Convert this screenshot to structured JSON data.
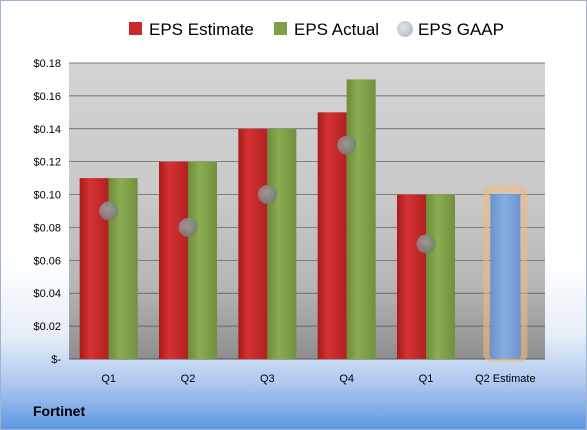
{
  "company": "Fortinet",
  "colors": {
    "estimate": "#c82b2b",
    "actual": "#7fa046",
    "gaap": "#8a8a8a",
    "q2_estimate": "#7aa0d6",
    "q2_glow": "#f5b97a"
  },
  "chart_data": {
    "type": "bar",
    "categories": [
      "Q1",
      "Q2",
      "Q3",
      "Q4",
      "Q1",
      "Q2 Estimate"
    ],
    "series": [
      {
        "name": "EPS Estimate",
        "values": [
          0.11,
          0.12,
          0.14,
          0.15,
          0.1,
          null
        ]
      },
      {
        "name": "EPS Actual",
        "values": [
          0.11,
          0.12,
          0.14,
          0.17,
          0.1,
          null
        ]
      },
      {
        "name": "EPS GAAP",
        "type": "scatter",
        "values": [
          0.09,
          0.08,
          0.1,
          0.13,
          0.07,
          null
        ]
      },
      {
        "name": "",
        "values": [
          null,
          null,
          null,
          null,
          null,
          0.1
        ]
      }
    ],
    "ylim": [
      0,
      0.18
    ],
    "yticks": [
      0,
      0.02,
      0.04,
      0.06,
      0.08,
      0.1,
      0.12,
      0.14,
      0.16,
      0.18
    ],
    "ytick_labels": [
      "$-",
      "$0.02",
      "$0.04",
      "$0.06",
      "$0.08",
      "$0.10",
      "$0.12",
      "$0.14",
      "$0.16",
      "$0.18"
    ],
    "grid": true,
    "legend": "top"
  }
}
